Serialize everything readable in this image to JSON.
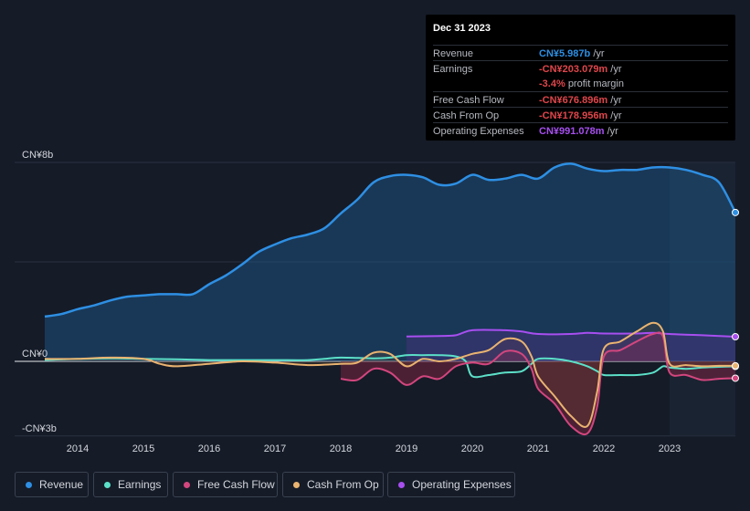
{
  "tooltip": {
    "date": "Dec 31 2023",
    "rows": [
      {
        "label": "Revenue",
        "value": "CN¥5.987b",
        "unit": "/yr",
        "color": "#2e8fe3"
      },
      {
        "label": "Earnings",
        "value": "-CN¥203.079m",
        "unit": "/yr",
        "color": "#e0464b"
      },
      {
        "label": "",
        "value": "-3.4%",
        "unit": "profit margin",
        "color": "#e0464b"
      },
      {
        "label": "Free Cash Flow",
        "value": "-CN¥676.896m",
        "unit": "/yr",
        "color": "#e0464b"
      },
      {
        "label": "Cash From Op",
        "value": "-CN¥178.956m",
        "unit": "/yr",
        "color": "#e0464b"
      },
      {
        "label": "Operating Expenses",
        "value": "CN¥991.078m",
        "unit": "/yr",
        "color": "#a74ff0"
      }
    ]
  },
  "legend": [
    {
      "label": "Revenue",
      "color": "#2e8fe3"
    },
    {
      "label": "Earnings",
      "color": "#5ce0c8"
    },
    {
      "label": "Free Cash Flow",
      "color": "#d3467e"
    },
    {
      "label": "Cash From Op",
      "color": "#e9b370"
    },
    {
      "label": "Operating Expenses",
      "color": "#a74ff0"
    }
  ],
  "chart_data": {
    "type": "line",
    "title": "",
    "xlabel": "",
    "ylabel": "",
    "unit": "CN¥ billions",
    "ylim": [
      -3,
      8
    ],
    "xlim": [
      2013.5,
      2024.0
    ],
    "y_tick_labels": [
      {
        "value": 8,
        "label": "CN¥8b"
      },
      {
        "value": 0,
        "label": "CN¥0"
      },
      {
        "value": -3,
        "label": "-CN¥3b"
      }
    ],
    "x_ticks": [
      2014,
      2015,
      2016,
      2017,
      2018,
      2019,
      2020,
      2021,
      2022,
      2023
    ],
    "x_tick_labels": [
      "2014",
      "2015",
      "2016",
      "2017",
      "2018",
      "2019",
      "2020",
      "2021",
      "2022",
      "2023"
    ],
    "highlight_start": 2023.0,
    "series": [
      {
        "name": "Revenue",
        "color": "#2e8fe3",
        "fill": true,
        "x": [
          2013.5,
          2013.75,
          2014.0,
          2014.25,
          2014.5,
          2014.75,
          2015.0,
          2015.25,
          2015.5,
          2015.75,
          2016.0,
          2016.25,
          2016.5,
          2016.75,
          2017.0,
          2017.25,
          2017.5,
          2017.75,
          2018.0,
          2018.25,
          2018.5,
          2018.75,
          2019.0,
          2019.25,
          2019.5,
          2019.75,
          2020.0,
          2020.25,
          2020.5,
          2020.75,
          2021.0,
          2021.25,
          2021.5,
          2021.75,
          2022.0,
          2022.25,
          2022.5,
          2022.75,
          2023.0,
          2023.25,
          2023.5,
          2023.75,
          2024.0
        ],
        "values": [
          1.8,
          1.9,
          2.1,
          2.25,
          2.45,
          2.6,
          2.65,
          2.7,
          2.7,
          2.7,
          3.1,
          3.45,
          3.9,
          4.4,
          4.7,
          4.95,
          5.1,
          5.35,
          5.95,
          6.5,
          7.2,
          7.45,
          7.5,
          7.4,
          7.1,
          7.15,
          7.5,
          7.3,
          7.35,
          7.5,
          7.35,
          7.8,
          7.95,
          7.75,
          7.65,
          7.7,
          7.7,
          7.8,
          7.8,
          7.7,
          7.5,
          7.2,
          5.987
        ]
      },
      {
        "name": "Earnings",
        "color": "#5ce0c8",
        "fill": false,
        "x": [
          2013.5,
          2014.0,
          2014.5,
          2015.0,
          2015.5,
          2016.0,
          2016.5,
          2017.0,
          2017.5,
          2017.75,
          2018.0,
          2018.5,
          2018.75,
          2019.0,
          2019.25,
          2019.5,
          2019.75,
          2019.9,
          2020.0,
          2020.25,
          2020.5,
          2020.75,
          2020.9,
          2021.0,
          2021.25,
          2021.5,
          2021.75,
          2021.9,
          2022.0,
          2022.25,
          2022.5,
          2022.75,
          2022.9,
          2023.0,
          2023.25,
          2023.5,
          2023.75,
          2024.0
        ],
        "values": [
          0.05,
          0.1,
          0.12,
          0.1,
          0.08,
          0.05,
          0.05,
          0.05,
          0.05,
          0.1,
          0.15,
          0.12,
          0.15,
          0.25,
          0.25,
          0.25,
          0.2,
          0.0,
          -0.6,
          -0.55,
          -0.45,
          -0.4,
          -0.1,
          0.1,
          0.1,
          0.0,
          -0.2,
          -0.4,
          -0.55,
          -0.55,
          -0.55,
          -0.45,
          -0.2,
          -0.25,
          -0.3,
          -0.25,
          -0.22,
          -0.203
        ]
      },
      {
        "name": "Free Cash Flow",
        "color": "#d3467e",
        "fill": true,
        "x": [
          2018.0,
          2018.25,
          2018.5,
          2018.75,
          2019.0,
          2019.25,
          2019.5,
          2019.75,
          2020.0,
          2020.25,
          2020.5,
          2020.75,
          2020.9,
          2021.0,
          2021.25,
          2021.5,
          2021.75,
          2021.9,
          2022.0,
          2022.25,
          2022.5,
          2022.75,
          2022.9,
          2023.0,
          2023.25,
          2023.5,
          2023.75,
          2024.0
        ],
        "values": [
          -0.7,
          -0.75,
          -0.3,
          -0.45,
          -0.95,
          -0.6,
          -0.7,
          -0.2,
          -0.05,
          -0.1,
          0.4,
          0.3,
          -0.3,
          -1.1,
          -1.7,
          -2.6,
          -2.9,
          -1.8,
          0.2,
          0.45,
          0.8,
          1.1,
          1.0,
          -0.45,
          -0.55,
          -0.75,
          -0.7,
          -0.677
        ]
      },
      {
        "name": "Cash From Op",
        "color": "#e9b370",
        "fill": true,
        "x": [
          2013.5,
          2014.0,
          2014.5,
          2015.0,
          2015.25,
          2015.5,
          2016.0,
          2016.5,
          2017.0,
          2017.5,
          2018.0,
          2018.25,
          2018.5,
          2018.75,
          2019.0,
          2019.25,
          2019.5,
          2019.75,
          2020.0,
          2020.25,
          2020.5,
          2020.75,
          2020.9,
          2021.0,
          2021.25,
          2021.5,
          2021.75,
          2021.9,
          2022.0,
          2022.25,
          2022.5,
          2022.75,
          2022.9,
          2023.0,
          2023.25,
          2023.5,
          2023.75,
          2024.0
        ],
        "values": [
          0.1,
          0.1,
          0.15,
          0.1,
          -0.1,
          -0.2,
          -0.1,
          0.0,
          -0.05,
          -0.15,
          -0.1,
          -0.05,
          0.35,
          0.3,
          -0.2,
          0.1,
          0.0,
          0.1,
          0.3,
          0.45,
          0.9,
          0.8,
          0.2,
          -0.6,
          -1.4,
          -2.2,
          -2.6,
          -1.2,
          0.5,
          0.8,
          1.2,
          1.55,
          1.2,
          -0.1,
          -0.15,
          -0.2,
          -0.18,
          -0.179
        ]
      },
      {
        "name": "Operating Expenses",
        "color": "#a74ff0",
        "fill": true,
        "x": [
          2019.0,
          2019.5,
          2019.75,
          2020.0,
          2020.5,
          2020.75,
          2021.0,
          2021.5,
          2021.75,
          2022.0,
          2022.5,
          2022.75,
          2023.0,
          2023.5,
          2024.0
        ],
        "values": [
          1.0,
          1.02,
          1.05,
          1.25,
          1.25,
          1.2,
          1.1,
          1.1,
          1.15,
          1.12,
          1.12,
          1.15,
          1.1,
          1.05,
          0.991
        ]
      }
    ]
  }
}
